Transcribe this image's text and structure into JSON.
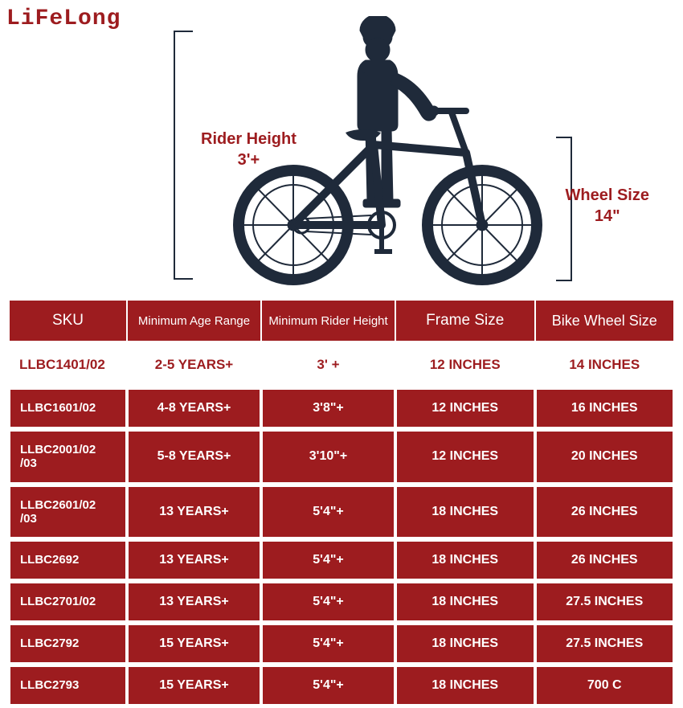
{
  "brand": {
    "logo_text": "LiFeLong"
  },
  "diagram": {
    "rider_height_label": "Rider Height",
    "rider_height_value": "3'+",
    "wheel_size_label": "Wheel Size",
    "wheel_size_value": "14\"",
    "silhouette_color": "#1f2a3a",
    "accent_color": "#9d1c1f",
    "background_color": "#ffffff",
    "label_fontsize": 20
  },
  "table": {
    "columns": [
      "SKU",
      "Minimum Age Range",
      "Minimum Rider Height",
      "Frame Size",
      "Bike Wheel Size"
    ],
    "highlight_row": {
      "sku": "LLBC1401/02",
      "age": "2-5 YEARS+",
      "height": "3' +",
      "frame": "12 INCHES",
      "wheel": "14 INCHES"
    },
    "rows": [
      {
        "sku": "LLBC1601/02",
        "age": "4-8 YEARS+",
        "height": "3'8\"+",
        "frame": "12 INCHES",
        "wheel": "16 INCHES"
      },
      {
        "sku": "LLBC2001/02\n/03",
        "age": "5-8 YEARS+",
        "height": "3'10\"+",
        "frame": "12 INCHES",
        "wheel": "20 INCHES"
      },
      {
        "sku": "LLBC2601/02\n/03",
        "age": "13 YEARS+",
        "height": "5'4\"+",
        "frame": "18 INCHES",
        "wheel": "26 INCHES"
      },
      {
        "sku": "LLBC2692",
        "age": "13 YEARS+",
        "height": "5'4\"+",
        "frame": "18 INCHES",
        "wheel": "26 INCHES"
      },
      {
        "sku": "LLBC2701/02",
        "age": "13 YEARS+",
        "height": "5'4\"+",
        "frame": "18 INCHES",
        "wheel": "27.5 INCHES"
      },
      {
        "sku": "LLBC2792",
        "age": "15 YEARS+",
        "height": "5'4\"+",
        "frame": "18 INCHES",
        "wheel": "27.5 INCHES"
      },
      {
        "sku": "LLBC2793",
        "age": "15 YEARS+",
        "height": "5'4\"+",
        "frame": "18 INCHES",
        "wheel": "700 C"
      }
    ],
    "header_bg": "#9d1c1f",
    "header_fg": "#ffffff",
    "highlight_bg": "#ffffff",
    "highlight_fg": "#9d1c1f",
    "body_bg": "#9d1c1f",
    "body_fg": "#ffffff",
    "border_color": "#ffffff",
    "header_fontsize": 17,
    "cell_fontsize": 16
  }
}
